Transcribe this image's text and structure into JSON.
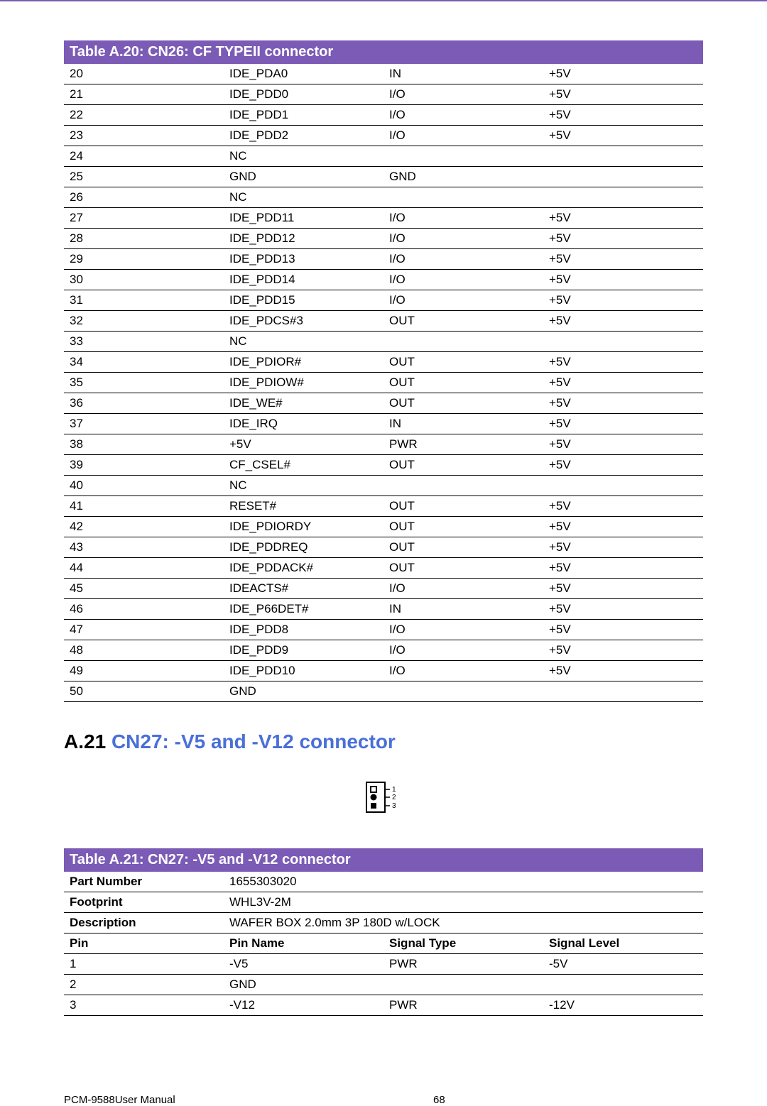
{
  "colors": {
    "accent": "#7b5bb5",
    "link": "#4a6fd8",
    "text": "#000000",
    "bg": "#ffffff",
    "border": "#000000"
  },
  "tableA20": {
    "title": "Table A.20: CN26: CF TYPEII connector",
    "rows": [
      {
        "pin": "20",
        "name": "IDE_PDA0",
        "type": "IN",
        "level": "+5V"
      },
      {
        "pin": "21",
        "name": "IDE_PDD0",
        "type": "I/O",
        "level": "+5V"
      },
      {
        "pin": "22",
        "name": "IDE_PDD1",
        "type": "I/O",
        "level": "+5V"
      },
      {
        "pin": "23",
        "name": "IDE_PDD2",
        "type": "I/O",
        "level": "+5V"
      },
      {
        "pin": "24",
        "name": "NC",
        "type": "",
        "level": ""
      },
      {
        "pin": "25",
        "name": "GND",
        "type": "GND",
        "level": ""
      },
      {
        "pin": "26",
        "name": "NC",
        "type": "",
        "level": ""
      },
      {
        "pin": "27",
        "name": "IDE_PDD11",
        "type": "I/O",
        "level": "+5V"
      },
      {
        "pin": "28",
        "name": "IDE_PDD12",
        "type": "I/O",
        "level": "+5V"
      },
      {
        "pin": "29",
        "name": "IDE_PDD13",
        "type": "I/O",
        "level": "+5V"
      },
      {
        "pin": "30",
        "name": "IDE_PDD14",
        "type": "I/O",
        "level": "+5V"
      },
      {
        "pin": "31",
        "name": "IDE_PDD15",
        "type": "I/O",
        "level": "+5V"
      },
      {
        "pin": "32",
        "name": "IDE_PDCS#3",
        "type": "OUT",
        "level": "+5V"
      },
      {
        "pin": "33",
        "name": "NC",
        "type": "",
        "level": ""
      },
      {
        "pin": "34",
        "name": "IDE_PDIOR#",
        "type": "OUT",
        "level": "+5V"
      },
      {
        "pin": "35",
        "name": "IDE_PDIOW#",
        "type": "OUT",
        "level": "+5V"
      },
      {
        "pin": "36",
        "name": "IDE_WE#",
        "type": "OUT",
        "level": "+5V"
      },
      {
        "pin": "37",
        "name": "IDE_IRQ",
        "type": "IN",
        "level": "+5V"
      },
      {
        "pin": "38",
        "name": "+5V",
        "type": "PWR",
        "level": "+5V"
      },
      {
        "pin": "39",
        "name": "CF_CSEL#",
        "type": "OUT",
        "level": "+5V"
      },
      {
        "pin": "40",
        "name": "NC",
        "type": "",
        "level": ""
      },
      {
        "pin": "41",
        "name": "RESET#",
        "type": "OUT",
        "level": "+5V"
      },
      {
        "pin": "42",
        "name": "IDE_PDIORDY",
        "type": "OUT",
        "level": "+5V"
      },
      {
        "pin": "43",
        "name": "IDE_PDDREQ",
        "type": "OUT",
        "level": "+5V"
      },
      {
        "pin": "44",
        "name": "IDE_PDDACK#",
        "type": "OUT",
        "level": "+5V"
      },
      {
        "pin": "45",
        "name": "IDEACTS#",
        "type": "I/O",
        "level": "+5V"
      },
      {
        "pin": "46",
        "name": "IDE_P66DET#",
        "type": "IN",
        "level": "+5V"
      },
      {
        "pin": "47",
        "name": "IDE_PDD8",
        "type": "I/O",
        "level": "+5V"
      },
      {
        "pin": "48",
        "name": "IDE_PDD9",
        "type": "I/O",
        "level": "+5V"
      },
      {
        "pin": "49",
        "name": "IDE_PDD10",
        "type": "I/O",
        "level": "+5V"
      },
      {
        "pin": "50",
        "name": "GND",
        "type": "",
        "level": ""
      }
    ]
  },
  "sectionA21": {
    "number": "A.21",
    "title": "CN27: -V5 and -V12 connector"
  },
  "tableA21": {
    "title": "Table A.21: CN27: -V5 and -V12 connector",
    "meta": {
      "part_number_label": "Part Number",
      "part_number": "1655303020",
      "footprint_label": "Footprint",
      "footprint": "WHL3V-2M",
      "description_label": "Description",
      "description": "WAFER BOX 2.0mm 3P 180D w/LOCK"
    },
    "headers": {
      "pin": "Pin",
      "name": "Pin Name",
      "type": "Signal Type",
      "level": "Signal Level"
    },
    "rows": [
      {
        "pin": "1",
        "name": "-V5",
        "type": "PWR",
        "level": "-5V"
      },
      {
        "pin": "2",
        "name": "GND",
        "type": "",
        "level": ""
      },
      {
        "pin": "3",
        "name": "-V12",
        "type": "PWR",
        "level": "-12V"
      }
    ]
  },
  "connector_labels": {
    "l1": "1",
    "l2": "2",
    "l3": "3"
  },
  "footer": {
    "left": "PCM-9588User Manual",
    "page": "68"
  }
}
